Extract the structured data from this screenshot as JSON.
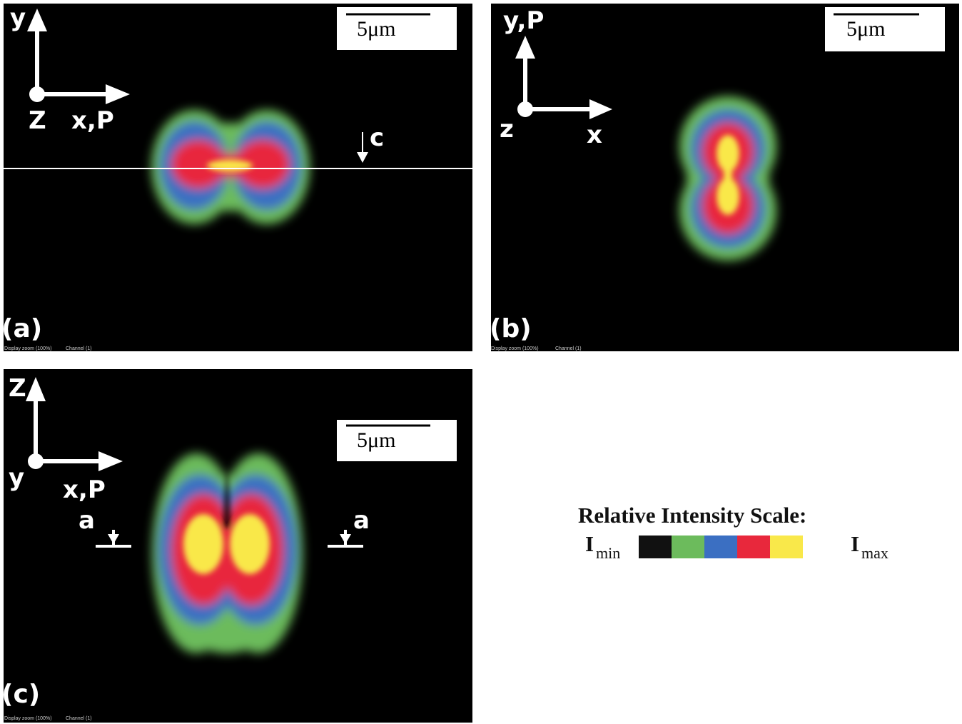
{
  "panels": [
    {
      "label": "(a)",
      "axes": {
        "up": "y",
        "out": "Z",
        "right": "x,P"
      },
      "scale_bar": "5μm",
      "markers": [
        "c"
      ],
      "footer": [
        "Display zoom (100%)",
        "Channel (1)"
      ]
    },
    {
      "label": "(b)",
      "axes": {
        "up": "y,P",
        "out": "z",
        "right": "x"
      },
      "scale_bar": "5μm",
      "footer": [
        "Display zoom (100%)",
        "Channel (1)"
      ]
    },
    {
      "label": "(c)",
      "axes": {
        "up": "Z",
        "out": "y",
        "right": "x,P"
      },
      "scale_bar": "5μm",
      "markers": [
        "a",
        "a"
      ],
      "footer": [
        "Display zoom (100%)",
        "Channel (1)"
      ]
    }
  ],
  "legend": {
    "title": "Relative Intensity Scale:",
    "min": {
      "symbol": "I",
      "subscript": "min"
    },
    "max": {
      "symbol": "I",
      "subscript": "max"
    },
    "colors": [
      "#111111",
      "#6cbb5c",
      "#3b6fc2",
      "#e8283c",
      "#f9e84a"
    ]
  }
}
